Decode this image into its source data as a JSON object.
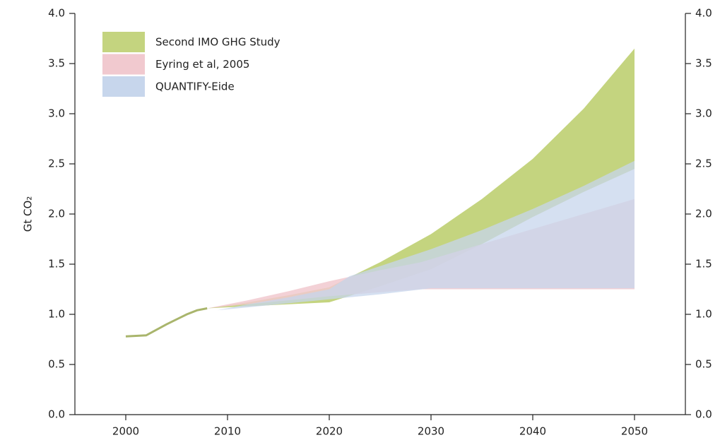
{
  "chart_data": {
    "type": "band",
    "ylabel": "Gt CO₂",
    "xlim": [
      1995,
      2055
    ],
    "xticks": [
      2000,
      2010,
      2020,
      2030,
      2040,
      2050
    ],
    "ylim": [
      0,
      4
    ],
    "yticks": [
      {
        "value": 0,
        "label": "0.0"
      },
      {
        "value": 0.5,
        "label": "0.5"
      },
      {
        "value": 1,
        "label": "1.0"
      },
      {
        "value": 1.5,
        "label": "1.5"
      },
      {
        "value": 2,
        "label": "2.0"
      },
      {
        "value": 2.5,
        "label": "2.5"
      },
      {
        "value": 3,
        "label": "3.0"
      },
      {
        "value": 3.5,
        "label": "3.5"
      },
      {
        "value": 4,
        "label": "4.0"
      }
    ],
    "y2lim": [
      0,
      4
    ],
    "y2ticks": [
      {
        "value": 0,
        "label": "0.0"
      },
      {
        "value": 0.5,
        "label": "0.5"
      },
      {
        "value": 1,
        "label": "1.0"
      },
      {
        "value": 1.5,
        "label": "1.5"
      },
      {
        "value": 2,
        "label": "2.0"
      },
      {
        "value": 2.5,
        "label": "2.5"
      },
      {
        "value": 3,
        "label": "3.0"
      },
      {
        "value": 3.5,
        "label": "3.5"
      },
      {
        "value": 4,
        "label": "4.0"
      }
    ],
    "legend": "upper left",
    "history": {
      "color": "#a9b56c",
      "x": [
        2000,
        2002,
        2004,
        2006,
        2007,
        2008
      ],
      "values": [
        0.78,
        0.79,
        0.9,
        1.0,
        1.04,
        1.06
      ]
    },
    "series": [
      {
        "name": "Second IMO GHG Study",
        "color": "#c4d47f",
        "opacity": 1,
        "x": [
          2008,
          2012,
          2016,
          2020,
          2025,
          2030,
          2035,
          2040,
          2045,
          2050
        ],
        "upper": [
          1.06,
          1.12,
          1.19,
          1.27,
          1.52,
          1.8,
          2.15,
          2.55,
          3.05,
          3.65
        ],
        "lower": [
          1.06,
          1.08,
          1.1,
          1.12,
          1.28,
          1.45,
          1.7,
          1.97,
          2.22,
          2.45
        ]
      },
      {
        "name": "Eyring et al, 2005",
        "color": "#f1c9cf",
        "opacity": 0.85,
        "x": [
          2008,
          2012,
          2016,
          2020,
          2025,
          2029,
          2035,
          2040,
          2045,
          2050
        ],
        "upper": [
          1.06,
          1.14,
          1.23,
          1.33,
          1.44,
          1.52,
          1.7,
          1.85,
          2.0,
          2.15
        ],
        "lower": [
          1.06,
          1.1,
          1.14,
          1.18,
          1.22,
          1.25,
          1.25,
          1.25,
          1.25,
          1.25
        ]
      },
      {
        "name": "QUANTIFY-Eide",
        "color": "#c7d6ec",
        "opacity": 0.75,
        "x": [
          2009,
          2012,
          2016,
          2020,
          2022,
          2025,
          2030,
          2035,
          2040,
          2045,
          2050
        ],
        "upper": [
          1.04,
          1.1,
          1.17,
          1.25,
          1.38,
          1.48,
          1.65,
          1.84,
          2.05,
          2.28,
          2.53
        ],
        "lower": [
          1.04,
          1.07,
          1.11,
          1.15,
          1.17,
          1.2,
          1.26,
          1.26,
          1.26,
          1.26,
          1.26
        ]
      }
    ]
  }
}
